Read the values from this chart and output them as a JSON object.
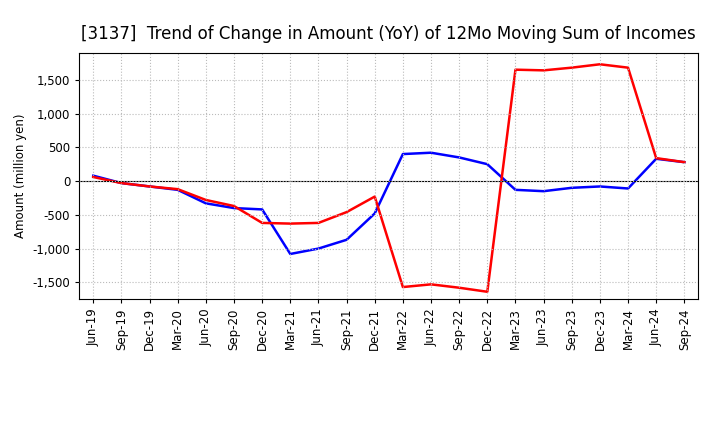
{
  "title": "[3137]  Trend of Change in Amount (YoY) of 12Mo Moving Sum of Incomes",
  "ylabel": "Amount (million yen)",
  "x_labels": [
    "Jun-19",
    "Sep-19",
    "Dec-19",
    "Mar-20",
    "Jun-20",
    "Sep-20",
    "Dec-20",
    "Mar-21",
    "Jun-21",
    "Sep-21",
    "Dec-21",
    "Mar-22",
    "Jun-22",
    "Sep-22",
    "Dec-22",
    "Mar-23",
    "Jun-23",
    "Sep-23",
    "Dec-23",
    "Mar-24",
    "Jun-24",
    "Sep-24"
  ],
  "ordinary_income": [
    80,
    -30,
    -80,
    -130,
    -330,
    -400,
    -420,
    -1080,
    -1000,
    -870,
    -480,
    400,
    420,
    350,
    250,
    -130,
    -150,
    -100,
    -80,
    -110,
    330,
    280
  ],
  "net_income": [
    60,
    -30,
    -80,
    -120,
    -280,
    -370,
    -620,
    -630,
    -620,
    -460,
    -230,
    -1570,
    -1530,
    -1580,
    -1640,
    1650,
    1640,
    1680,
    1730,
    1680,
    340,
    280
  ],
  "ordinary_income_color": "#0000ff",
  "net_income_color": "#ff0000",
  "background_color": "#ffffff",
  "plot_bg_color": "#ffffff",
  "grid_color": "#bbbbbb",
  "ylim": [
    -1750,
    1900
  ],
  "yticks": [
    -1500,
    -1000,
    -500,
    0,
    500,
    1000,
    1500
  ],
  "line_width": 1.8,
  "title_fontsize": 12,
  "legend_fontsize": 10,
  "axis_fontsize": 8.5
}
